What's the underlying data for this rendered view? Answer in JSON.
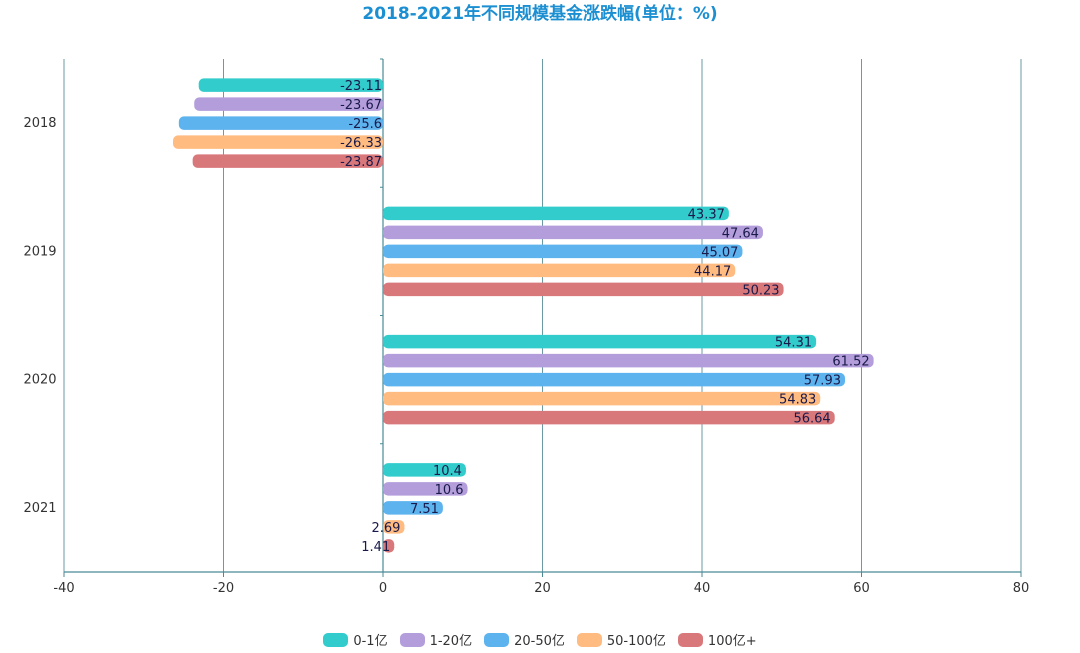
{
  "title": "2018-2021年不同规模基金涨跌幅(单位：%)",
  "chart_data": {
    "type": "bar",
    "orientation": "horizontal",
    "title": "2018-2021年不同规模基金涨跌幅(单位：%)",
    "categories": [
      "2018",
      "2019",
      "2020",
      "2021"
    ],
    "xlim": [
      -40,
      80
    ],
    "xticks": [
      -40,
      -20,
      0,
      20,
      40,
      60,
      80
    ],
    "grid": true,
    "legend_position": "bottom",
    "series": [
      {
        "name": "0-1亿",
        "color": "#33cccc",
        "values": [
          -23.11,
          43.37,
          54.31,
          10.4
        ],
        "labels": [
          "-23.11",
          "43.37",
          "54.31",
          "10.4"
        ]
      },
      {
        "name": "1-20亿",
        "color": "#b39ddb",
        "values": [
          -23.67,
          47.64,
          61.52,
          10.6
        ],
        "labels": [
          "-23.67",
          "47.64",
          "61.52",
          "10.6"
        ]
      },
      {
        "name": "20-50亿",
        "color": "#5cb3ee",
        "values": [
          -25.6,
          45.07,
          57.93,
          7.51
        ],
        "labels": [
          "-25.6",
          "45.07",
          "57.93",
          "7.51"
        ]
      },
      {
        "name": "50-100亿",
        "color": "#ffbb80",
        "values": [
          -26.33,
          44.17,
          54.83,
          2.69
        ],
        "labels": [
          "-26.33",
          "44.17",
          "54.83",
          "2.69"
        ]
      },
      {
        "name": "100亿+",
        "color": "#d9787b",
        "values": [
          -23.87,
          50.23,
          56.64,
          1.41
        ],
        "labels": [
          "-23.87",
          "50.23",
          "56.64",
          "1.41"
        ]
      }
    ]
  }
}
